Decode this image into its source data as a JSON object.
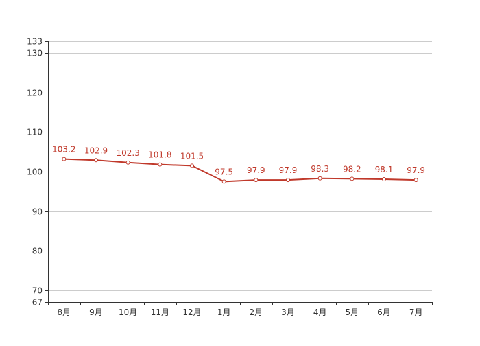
{
  "chart_data": {
    "type": "line",
    "title": "",
    "xlabel": "",
    "ylabel": "",
    "categories": [
      "8月",
      "9月",
      "10月",
      "11月",
      "12月",
      "1月",
      "2月",
      "3月",
      "4月",
      "5月",
      "6月",
      "7月"
    ],
    "series": [
      {
        "values": [
          103.2,
          102.9,
          102.3,
          101.8,
          101.5,
          97.5,
          97.9,
          97.9,
          98.3,
          98.2,
          98.1,
          97.9
        ],
        "color": "#c0392b"
      }
    ],
    "ylim": [
      67,
      133
    ],
    "yticks": [
      67,
      70,
      80,
      90,
      100,
      110,
      120,
      130,
      133
    ],
    "grid": true,
    "legend": "none",
    "data_labels": true
  }
}
